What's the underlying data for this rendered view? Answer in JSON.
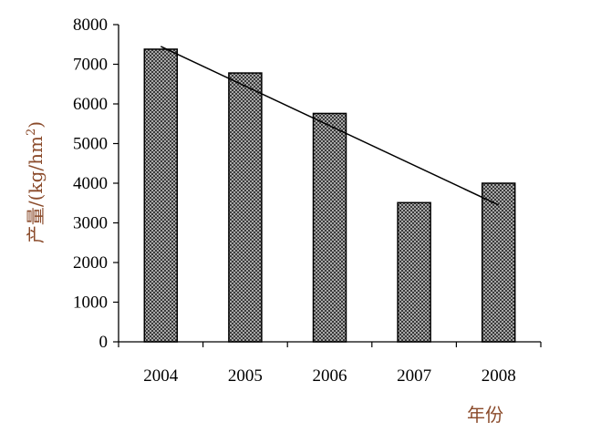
{
  "chart_data": {
    "type": "bar",
    "categories": [
      "2004",
      "2005",
      "2006",
      "2007",
      "2008"
    ],
    "values": [
      7380,
      6780,
      5760,
      3510,
      4000
    ],
    "ylim": [
      0,
      8000
    ],
    "yticks": [
      0,
      1000,
      2000,
      3000,
      4000,
      5000,
      6000,
      7000,
      8000
    ],
    "ylabel": "产量/(kg/hm²)",
    "ylabel_main": "产量/(kg/hm",
    "ylabel_sup": "2",
    "ylabel_end": ")",
    "xlabel": "年份",
    "trendline": {
      "start": 7450,
      "end": 3450
    },
    "grid": false,
    "legend": "none",
    "colors": {
      "bar_fill": "#9a9a9a",
      "bar_pattern": "#3a3a3a",
      "axis": "#000000",
      "label": "#8a4a2a"
    }
  }
}
